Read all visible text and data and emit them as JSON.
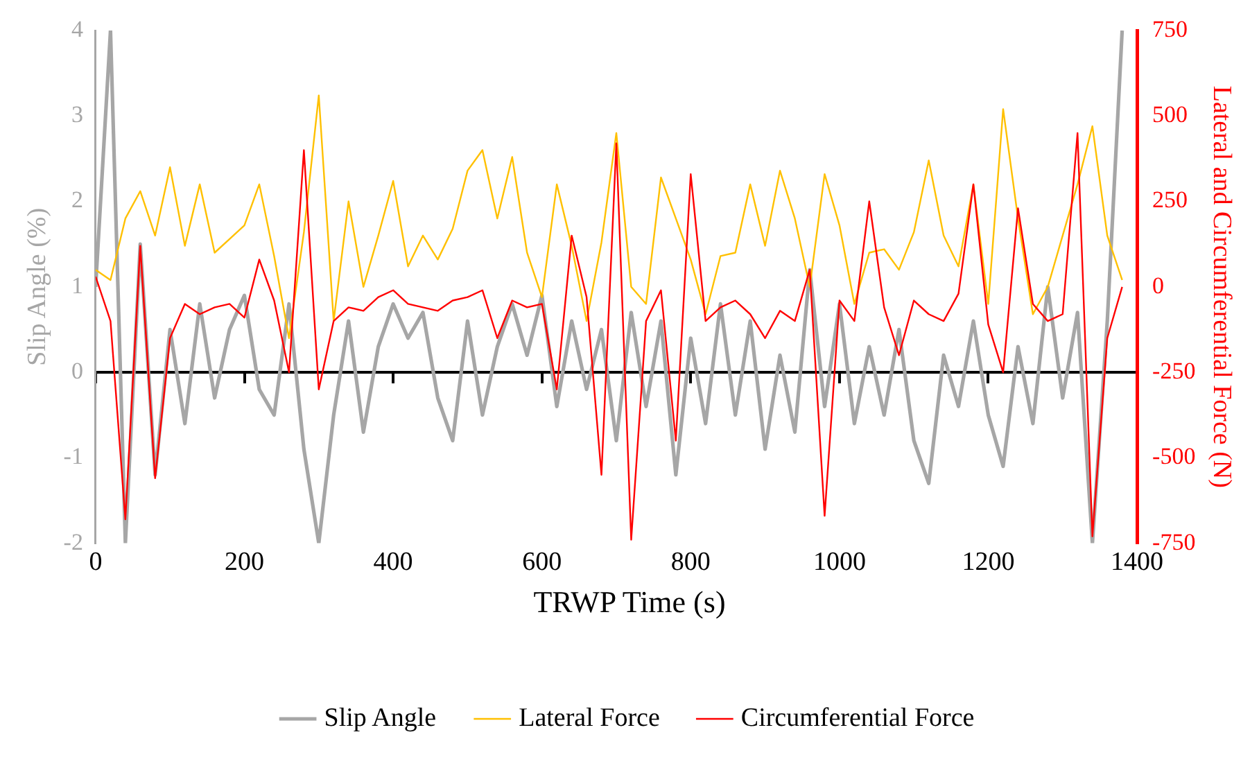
{
  "chart_data": {
    "type": "line",
    "xlabel": "TRWP Time (s)",
    "ylabel": "Slip Angle (%)",
    "y2label": "Lateral and Circumferential Force (N)",
    "x": [
      0,
      20,
      40,
      60,
      80,
      100,
      120,
      140,
      160,
      180,
      200,
      220,
      240,
      260,
      280,
      300,
      320,
      340,
      360,
      380,
      400,
      420,
      440,
      460,
      480,
      500,
      520,
      540,
      560,
      580,
      600,
      620,
      640,
      660,
      680,
      700,
      720,
      740,
      760,
      780,
      800,
      820,
      840,
      860,
      880,
      900,
      920,
      940,
      960,
      980,
      1000,
      1020,
      1040,
      1060,
      1080,
      1100,
      1120,
      1140,
      1160,
      1180,
      1200,
      1220,
      1240,
      1260,
      1280,
      1300,
      1320,
      1340,
      1360,
      1380
    ],
    "series": [
      {
        "name": "Slip Angle",
        "color": "#a6a6a6",
        "values": [
          1.0,
          4.0,
          -2.0,
          1.5,
          -1.2,
          0.5,
          -0.6,
          0.8,
          -0.3,
          0.5,
          0.9,
          -0.2,
          -0.5,
          0.8,
          -0.9,
          -2.0,
          -0.5,
          0.6,
          -0.7,
          0.3,
          0.8,
          0.4,
          0.7,
          -0.3,
          -0.8,
          0.6,
          -0.5,
          0.3,
          0.8,
          0.2,
          0.9,
          -0.4,
          0.6,
          -0.2,
          0.5,
          -0.8,
          0.7,
          -0.4,
          0.6,
          -1.2,
          0.4,
          -0.6,
          0.8,
          -0.5,
          0.6,
          -0.9,
          0.2,
          -0.7,
          1.2,
          -0.4,
          0.8,
          -0.6,
          0.3,
          -0.5,
          0.5,
          -0.8,
          -1.3,
          0.2,
          -0.4,
          0.6,
          -0.5,
          -1.1,
          0.3,
          -0.6,
          1.0,
          -0.3,
          0.7,
          -2.0,
          0.6,
          4.0
        ]
      },
      {
        "name": "Lateral Force",
        "color": "#ffc000",
        "axis": "y2",
        "values": [
          50,
          20,
          200,
          280,
          150,
          350,
          120,
          300,
          100,
          140,
          180,
          300,
          90,
          -150,
          160,
          560,
          -100,
          250,
          0,
          150,
          310,
          60,
          150,
          80,
          170,
          340,
          400,
          200,
          380,
          100,
          -30,
          300,
          120,
          -100,
          130,
          450,
          0,
          -50,
          320,
          200,
          80,
          -80,
          90,
          100,
          300,
          120,
          340,
          200,
          0,
          330,
          180,
          -50,
          100,
          110,
          50,
          160,
          370,
          150,
          60,
          300,
          -50,
          520,
          200,
          -80,
          0,
          150,
          300,
          470,
          150,
          20
        ]
      },
      {
        "name": "Circumferential Force",
        "color": "#ff0000",
        "axis": "y2",
        "values": [
          30,
          -100,
          -680,
          120,
          -560,
          -150,
          -50,
          -80,
          -60,
          -50,
          -90,
          80,
          -40,
          -250,
          400,
          -300,
          -100,
          -60,
          -70,
          -30,
          -10,
          -50,
          -60,
          -70,
          -40,
          -30,
          -10,
          -150,
          -40,
          -60,
          -50,
          -300,
          150,
          -30,
          -550,
          420,
          -740,
          -100,
          -10,
          -450,
          330,
          -100,
          -60,
          -40,
          -80,
          -150,
          -70,
          -100,
          50,
          -670,
          -40,
          -100,
          250,
          -60,
          -200,
          -40,
          -80,
          -100,
          -20,
          300,
          -110,
          -250,
          230,
          -50,
          -100,
          -80,
          450,
          -730,
          -150,
          0
        ]
      }
    ],
    "xlim": [
      0,
      1400
    ],
    "xticks": [
      0,
      200,
      400,
      600,
      800,
      1000,
      1200,
      1400
    ],
    "ylim": [
      -2,
      4
    ],
    "yticks": [
      -2,
      -1,
      0,
      1,
      2,
      3,
      4
    ],
    "y2lim": [
      -750,
      750
    ],
    "y2ticks": [
      -750,
      -500,
      -250,
      0,
      250,
      500,
      750
    ],
    "legend": "bottom"
  }
}
